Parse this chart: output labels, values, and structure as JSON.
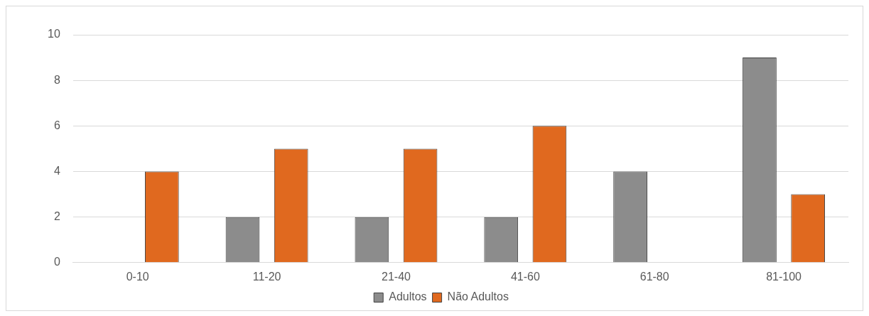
{
  "chart_data": {
    "type": "bar",
    "categories": [
      "0-10",
      "11-20",
      "21-40",
      "41-60",
      "61-80",
      "81-100"
    ],
    "series": [
      {
        "name": "Adultos",
        "color": "#8c8c8c",
        "values": [
          0,
          2,
          2,
          2,
          4,
          9
        ]
      },
      {
        "name": "Não Adultos",
        "color": "#e0691f",
        "values": [
          4,
          5,
          5,
          6,
          0,
          3
        ]
      }
    ],
    "ylim": [
      0,
      10
    ],
    "yticks": [
      0,
      2,
      4,
      6,
      8,
      10
    ],
    "grid": "y",
    "legend": "bottom"
  }
}
